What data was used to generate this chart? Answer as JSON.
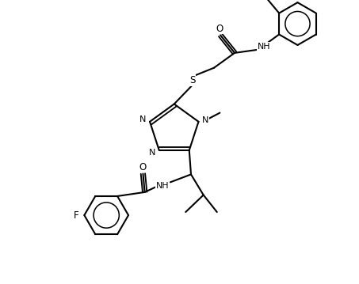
{
  "bg": "#ffffff",
  "lc": "#000000",
  "lw": 1.5,
  "fs": 9.0,
  "dpi": 100,
  "fw": 4.53,
  "fh": 3.59,
  "xlim": [
    0,
    10
  ],
  "ylim": [
    0,
    8
  ]
}
